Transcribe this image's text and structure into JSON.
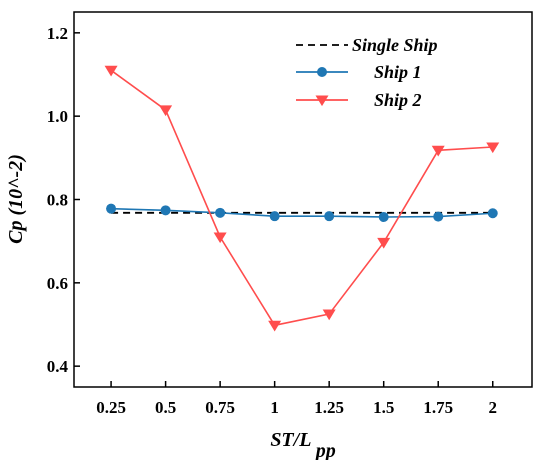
{
  "chart_data": {
    "type": "line",
    "xlabel": "ST/L",
    "xlabel_sub": "pp",
    "ylabel": "Cp (10^-2)",
    "x": [
      0.25,
      0.5,
      0.75,
      1,
      1.25,
      1.5,
      1.75,
      2
    ],
    "x_tick_labels": [
      "0.25",
      "0.5",
      "0.75",
      "1",
      "1.25",
      "1.5",
      "1.75",
      "2"
    ],
    "xlim": [
      0.08,
      2.18
    ],
    "ylim": [
      0.35,
      1.25
    ],
    "y_ticks": [
      0.4,
      0.6,
      0.8,
      1.0,
      1.2
    ],
    "y_tick_labels": [
      "0.4",
      "0.6",
      "0.8",
      "1.0",
      "1.2"
    ],
    "grid": false,
    "legend_position": "top-right",
    "series": [
      {
        "name": "Single Ship",
        "values": [
          0.768,
          0.768,
          0.768,
          0.768,
          0.768,
          0.768,
          0.768,
          0.768
        ],
        "color": "#000000",
        "line_style": "dashed",
        "marker": "none"
      },
      {
        "name": "Ship 1",
        "values": [
          0.778,
          0.774,
          0.768,
          0.76,
          0.76,
          0.758,
          0.759,
          0.767
        ],
        "color": "#1f77b4",
        "line_style": "solid",
        "marker": "circle"
      },
      {
        "name": "Ship 2",
        "values": [
          1.11,
          1.015,
          0.71,
          0.498,
          0.525,
          0.697,
          0.918,
          0.926
        ],
        "color": "#ff4d4d",
        "line_style": "solid",
        "marker": "triangle-down"
      }
    ]
  }
}
